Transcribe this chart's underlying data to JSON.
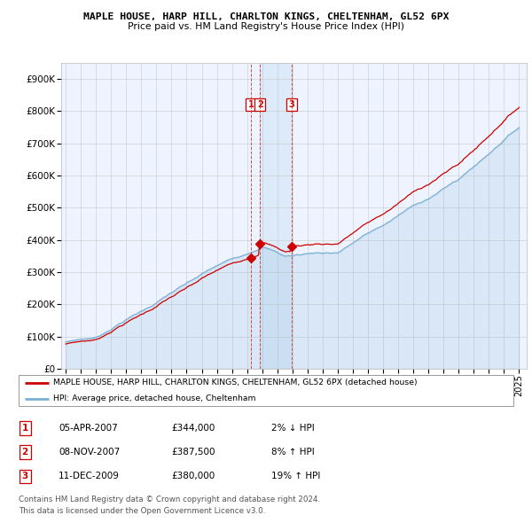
{
  "title1": "MAPLE HOUSE, HARP HILL, CHARLTON KINGS, CHELTENHAM, GL52 6PX",
  "title2": "Price paid vs. HM Land Registry's House Price Index (HPI)",
  "ylim": [
    0,
    950000
  ],
  "yticks": [
    0,
    100000,
    200000,
    300000,
    400000,
    500000,
    600000,
    700000,
    800000,
    900000
  ],
  "ytick_labels": [
    "£0",
    "£100K",
    "£200K",
    "£300K",
    "£400K",
    "£500K",
    "£600K",
    "£700K",
    "£800K",
    "£900K"
  ],
  "plot_bg_color": "#EEF4FF",
  "red_line_color": "#CC0000",
  "blue_line_color": "#7BAFD4",
  "shade_color": "#D0E4F5",
  "vline_color": "#CC3333",
  "transaction_dates": [
    2007.26,
    2007.85,
    2009.94
  ],
  "transaction_prices": [
    344000,
    387500,
    380000
  ],
  "legend_red": "MAPLE HOUSE, HARP HILL, CHARLTON KINGS, CHELTENHAM, GL52 6PX (detached house)",
  "legend_blue": "HPI: Average price, detached house, Cheltenham",
  "table_rows": [
    {
      "num": "1",
      "date": "05-APR-2007",
      "price": "£344,000",
      "hpi": "2% ↓ HPI"
    },
    {
      "num": "2",
      "date": "08-NOV-2007",
      "price": "£387,500",
      "hpi": "8% ↑ HPI"
    },
    {
      "num": "3",
      "date": "11-DEC-2009",
      "price": "£380,000",
      "hpi": "19% ↑ HPI"
    }
  ],
  "footer": "Contains HM Land Registry data © Crown copyright and database right 2024.\nThis data is licensed under the Open Government Licence v3.0.",
  "xlim_left": 1995.0,
  "xlim_right": 2025.5
}
